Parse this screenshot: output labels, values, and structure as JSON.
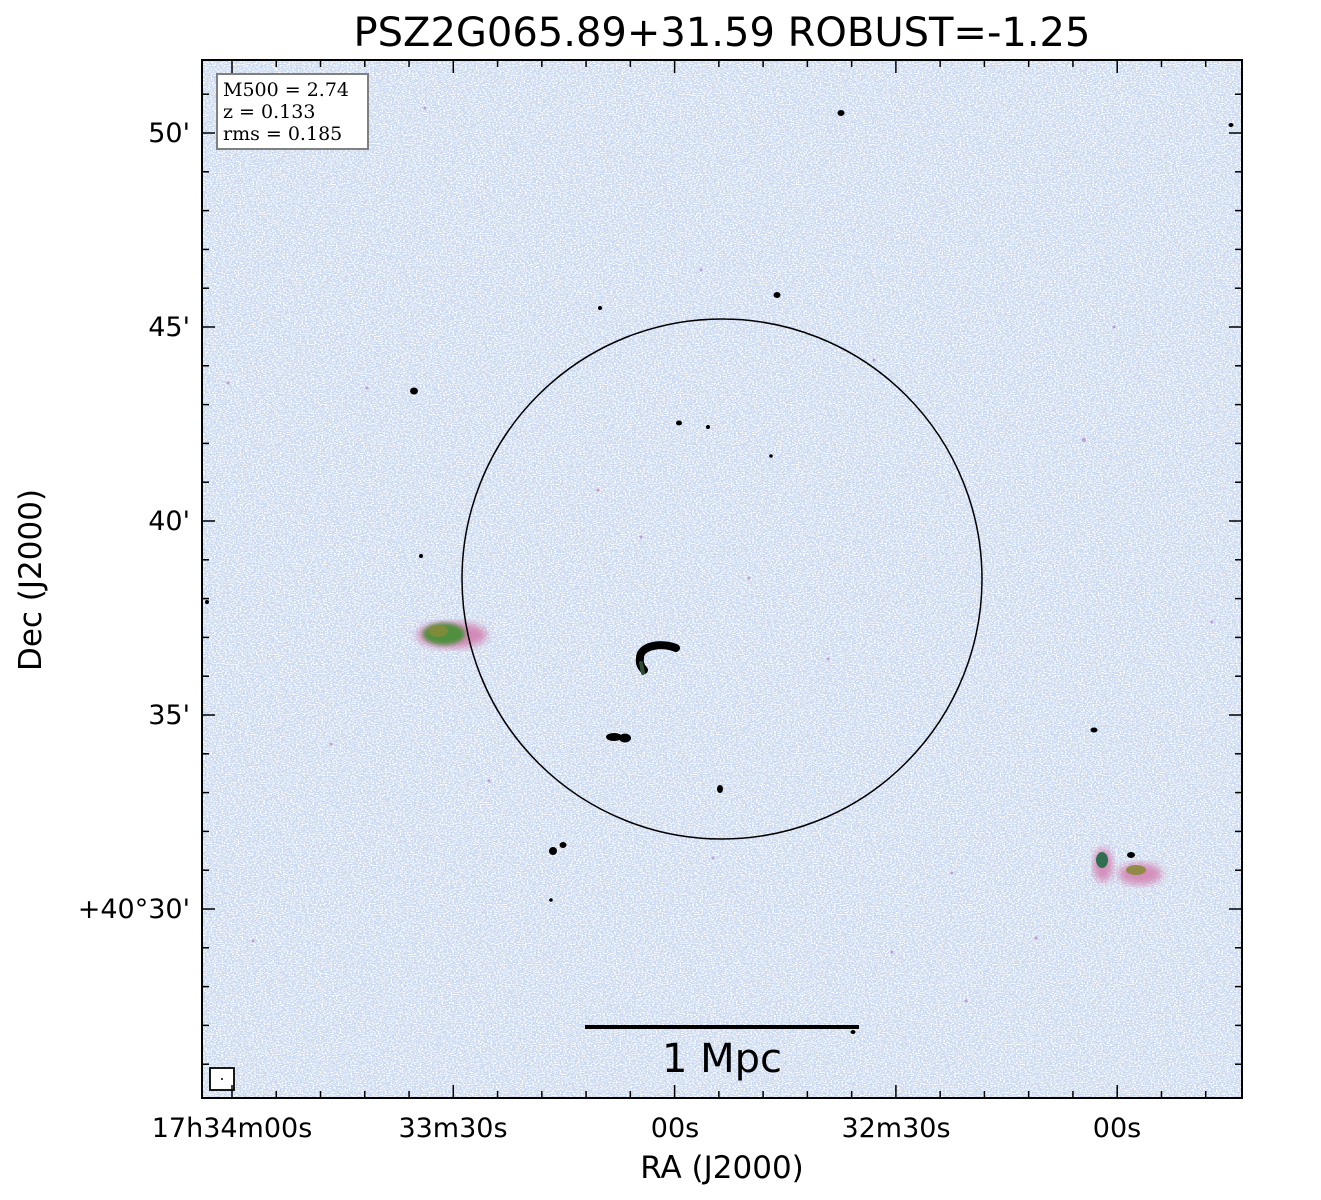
{
  "title": "PSZ2G065.89+31.59 ROBUST=-1.25",
  "info_box": {
    "lines": [
      "M500 = 2.74",
      "z = 0.133",
      "rms = 0.185"
    ]
  },
  "x_axis": {
    "label": "RA (J2000)",
    "tick_labels": [
      "17h34m00s",
      "33m30s",
      "00s",
      "32m30s",
      "00s"
    ]
  },
  "y_axis": {
    "label": "Dec (J2000)",
    "tick_labels": [
      "50'",
      "45'",
      "40'",
      "35'",
      "+40°30'"
    ]
  },
  "scale_bar": {
    "label": "1 Mpc"
  },
  "colors": {
    "noise": "#7f9fd6",
    "noise_magenta": "#c77fc0",
    "source": "#000000",
    "source_green": "#4f8f3f",
    "source_pink": "#d9739a",
    "frame": "#000000",
    "info_border": "#808080"
  }
}
